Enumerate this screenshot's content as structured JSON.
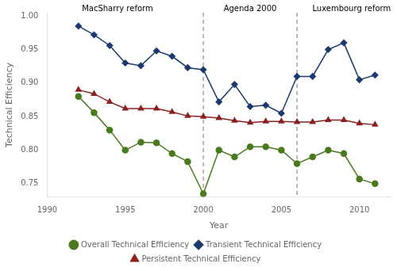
{
  "chart_data": {
    "type": "line",
    "x": [
      1992,
      1993,
      1994,
      1995,
      1996,
      1997,
      1998,
      1999,
      2000,
      2001,
      2002,
      2003,
      2004,
      2005,
      2006,
      2007,
      2008,
      2009,
      2010,
      2011
    ],
    "series": [
      {
        "name": "Overall Technical Efficiency",
        "color": "#4a7a1e",
        "marker": "circle",
        "values": [
          0.88,
          0.856,
          0.83,
          0.8,
          0.812,
          0.811,
          0.795,
          0.783,
          0.735,
          0.8,
          0.79,
          0.805,
          0.805,
          0.8,
          0.78,
          0.79,
          0.8,
          0.795,
          0.757,
          0.75
        ]
      },
      {
        "name": "Transient Technical Efficiency",
        "color": "#1a3a6e",
        "marker": "diamond",
        "values": [
          0.985,
          0.972,
          0.956,
          0.93,
          0.926,
          0.948,
          0.94,
          0.923,
          0.92,
          0.872,
          0.898,
          0.865,
          0.867,
          0.855,
          0.91,
          0.91,
          0.95,
          0.96,
          0.905,
          0.912
        ]
      },
      {
        "name": "Persistent Technical Efficiency",
        "color": "#8b2020",
        "marker": "triangle",
        "values": [
          0.89,
          0.884,
          0.872,
          0.862,
          0.862,
          0.862,
          0.857,
          0.851,
          0.85,
          0.848,
          0.844,
          0.841,
          0.843,
          0.843,
          0.842,
          0.842,
          0.845,
          0.845,
          0.84,
          0.838
        ]
      }
    ],
    "xlabel": "Year",
    "ylabel": "Technical Efficiency",
    "xlim": [
      1990,
      2012
    ],
    "xticks": [
      1990,
      1995,
      2000,
      2005,
      2010
    ],
    "ylim": [
      0.73,
      1.005
    ],
    "yticks": [
      0.75,
      {
        "value": 0.8,
        "label": "0.80"
      },
      0.85,
      {
        "value": 0.9,
        "label": "0.90"
      },
      0.95,
      {
        "value": 1.0,
        "label": "1.00"
      }
    ],
    "vlines": [
      {
        "x": 2000,
        "color": "#777777",
        "line_style": "dashed"
      },
      {
        "x": 2006,
        "color": "#777777",
        "line_style": "dashed"
      }
    ],
    "annotations": [
      {
        "text": "MacSharry reform",
        "x": 1994.5,
        "y": 1.003
      },
      {
        "text": "Agenda 2000",
        "x": 2003.0,
        "y": 1.003
      },
      {
        "text": "Luxembourg reform",
        "x": 2009.5,
        "y": 1.003
      }
    ],
    "grid": false,
    "legend": "bottom"
  }
}
